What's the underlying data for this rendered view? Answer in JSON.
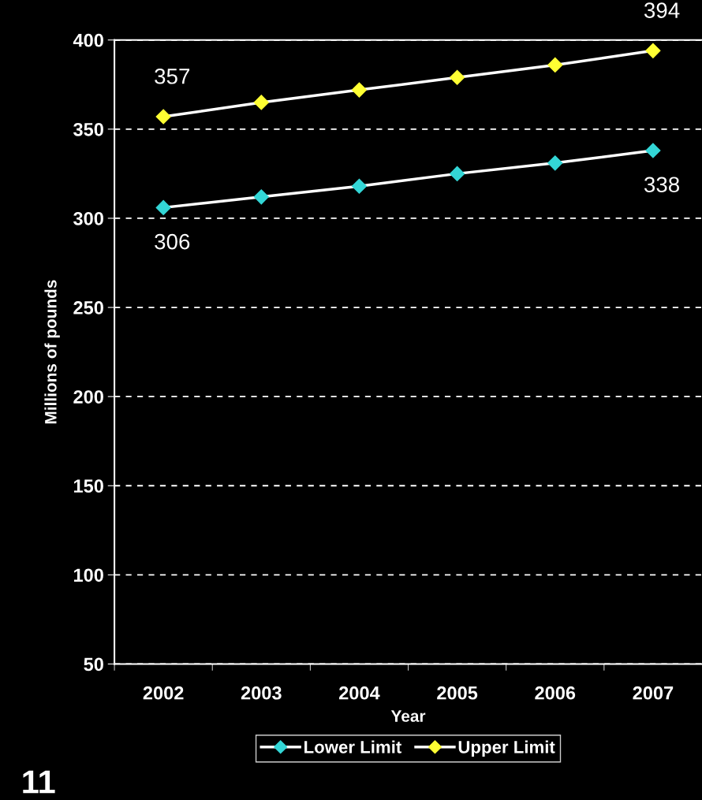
{
  "chart_data": {
    "type": "line",
    "xlabel": "Year",
    "ylabel": "Millions of pounds",
    "categories": [
      "2002",
      "2003",
      "2004",
      "2005",
      "2006",
      "2007"
    ],
    "series": [
      {
        "name": "Lower Limit",
        "color": "#33d6d6",
        "values": [
          306,
          312,
          318,
          325,
          331,
          338
        ],
        "value_labels": [
          "306",
          null,
          null,
          null,
          null,
          "338"
        ],
        "marker": "diamond"
      },
      {
        "name": "Upper Limit",
        "color": "#ffff33",
        "values": [
          357,
          365,
          372,
          379,
          386,
          394
        ],
        "value_labels": [
          "357",
          null,
          null,
          null,
          null,
          "394"
        ],
        "marker": "diamond"
      }
    ],
    "ylim": [
      50,
      400
    ],
    "yticks": [
      50,
      100,
      150,
      200,
      250,
      300,
      350,
      400
    ],
    "grid": "y",
    "legend": "bottom",
    "line_style": "solid",
    "annotations": [
      "11"
    ]
  }
}
